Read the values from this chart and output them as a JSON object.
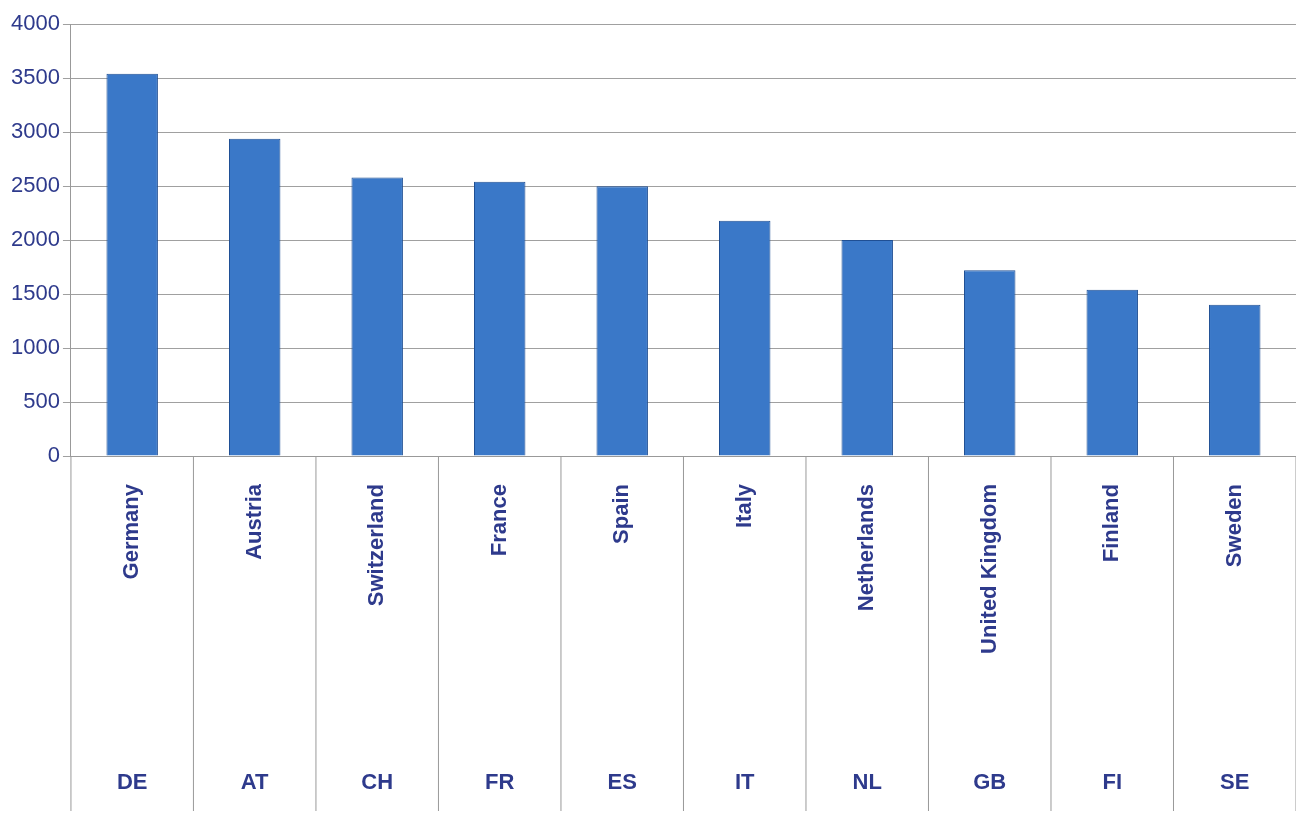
{
  "chart_data": {
    "type": "bar",
    "categories": [
      "Germany",
      "Austria",
      "Switzerland",
      "France",
      "Spain",
      "Italy",
      "Netherlands",
      "United Kingdom",
      "Finland",
      "Sweden"
    ],
    "values": [
      3540,
      2940,
      2580,
      2540,
      2500,
      2180,
      2000,
      1720,
      1540,
      1400
    ],
    "color": "#3a78c8",
    "ylim": [
      0,
      4000
    ],
    "yticks": [
      0,
      500,
      1000,
      1500,
      2000,
      2500,
      3000,
      3500,
      4000
    ],
    "grid": "y",
    "legend": false,
    "annotations": [
      "DE",
      "AT",
      "CH",
      "FR",
      "ES",
      "IT",
      "NL",
      "GB",
      "FI",
      "SE"
    ]
  }
}
